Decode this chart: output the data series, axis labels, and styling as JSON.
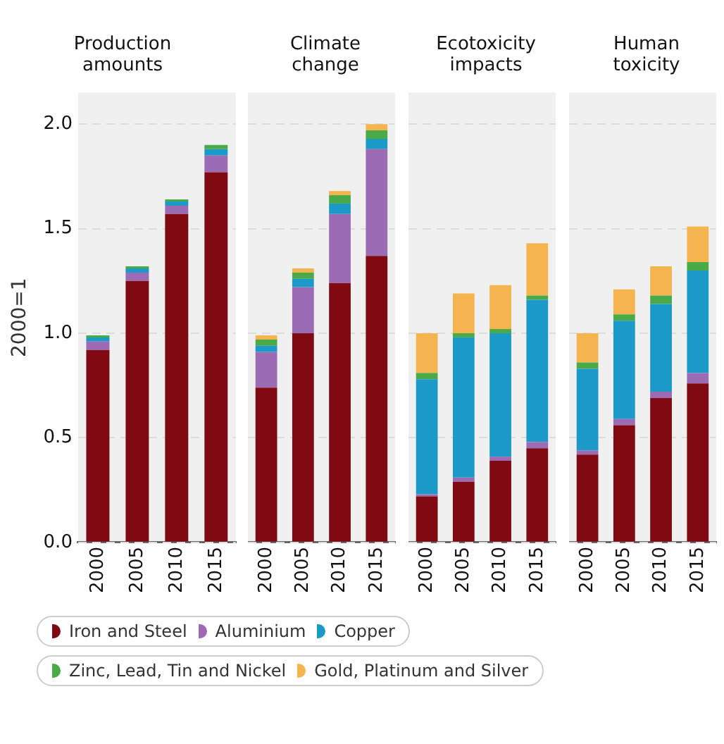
{
  "chart_data": [
    {
      "type": "bar",
      "title": "Production amounts",
      "ylabel": "2000=1",
      "categories": [
        "2000",
        "2005",
        "2010",
        "2015"
      ],
      "stacked": true,
      "ylim": [
        0,
        2.15
      ],
      "yticks": [
        {
          "value": 0,
          "label": "0.0"
        },
        0.5,
        {
          "value": 1,
          "label": "1.0"
        },
        1.5,
        {
          "value": 2,
          "label": "2.0"
        }
      ],
      "grid": "y",
      "legend": "bottom",
      "series": [
        {
          "name": "Iron and Steel",
          "color": "#7f0a12",
          "values": [
            0.92,
            1.25,
            1.57,
            1.77
          ]
        },
        {
          "name": "Aluminium",
          "color": "#9b6bb4",
          "values": [
            0.04,
            0.04,
            0.04,
            0.08
          ]
        },
        {
          "name": "Copper",
          "color": "#1b9ac9",
          "values": [
            0.02,
            0.02,
            0.02,
            0.03
          ]
        },
        {
          "name": "Zinc, Lead, Tin and Nickel",
          "color": "#4aaa47",
          "values": [
            0.01,
            0.01,
            0.01,
            0.02
          ]
        },
        {
          "name": "Gold, Platinum and Silver",
          "color": "#f6b44e",
          "values": [
            0,
            0,
            0,
            0
          ]
        }
      ]
    },
    {
      "type": "bar",
      "title": "Climate change",
      "categories": [
        "2000",
        "2005",
        "2010",
        "2015"
      ],
      "stacked": true,
      "ylim": [
        0,
        2.15
      ],
      "yticks": [
        0,
        0.5,
        1,
        1.5,
        2
      ],
      "grid": "y",
      "tick_labels": "x",
      "series": [
        {
          "color": "#7f0a12",
          "values": [
            0.74,
            1.0,
            1.24,
            1.37
          ]
        },
        {
          "color": "#9b6bb4",
          "values": [
            0.17,
            0.22,
            0.33,
            0.51
          ]
        },
        {
          "color": "#1b9ac9",
          "values": [
            0.03,
            0.04,
            0.05,
            0.05
          ]
        },
        {
          "color": "#4aaa47",
          "values": [
            0.03,
            0.03,
            0.04,
            0.04
          ]
        },
        {
          "color": "#f6b44e",
          "values": [
            0.02,
            0.02,
            0.02,
            0.03
          ]
        }
      ]
    },
    {
      "type": "bar",
      "title": "Ecotoxicity impacts",
      "categories": [
        "2000",
        "2005",
        "2010",
        "2015"
      ],
      "stacked": true,
      "ylim": [
        0,
        2.15
      ],
      "yticks": [
        0,
        0.5,
        1,
        1.5,
        2
      ],
      "grid": "y",
      "tick_labels": "x",
      "series": [
        {
          "color": "#7f0a12",
          "values": [
            0.22,
            0.29,
            0.39,
            0.45
          ]
        },
        {
          "color": "#9b6bb4",
          "values": [
            0.01,
            0.02,
            0.02,
            0.03
          ]
        },
        {
          "color": "#1b9ac9",
          "values": [
            0.55,
            0.67,
            0.59,
            0.68
          ]
        },
        {
          "color": "#4aaa47",
          "values": [
            0.03,
            0.02,
            0.02,
            0.02
          ]
        },
        {
          "color": "#f6b44e",
          "values": [
            0.19,
            0.19,
            0.21,
            0.25
          ]
        }
      ]
    },
    {
      "type": "bar",
      "title": "Human toxicity",
      "categories": [
        "2000",
        "2005",
        "2010",
        "2015"
      ],
      "stacked": true,
      "ylim": [
        0,
        2.15
      ],
      "yticks": [
        0,
        0.5,
        1,
        1.5,
        2
      ],
      "grid": "y",
      "tick_labels": "x",
      "series": [
        {
          "color": "#7f0a12",
          "values": [
            0.42,
            0.56,
            0.69,
            0.76
          ]
        },
        {
          "color": "#9b6bb4",
          "values": [
            0.02,
            0.03,
            0.03,
            0.05
          ]
        },
        {
          "color": "#1b9ac9",
          "values": [
            0.39,
            0.47,
            0.42,
            0.49
          ]
        },
        {
          "color": "#4aaa47",
          "values": [
            0.03,
            0.03,
            0.04,
            0.04
          ]
        },
        {
          "color": "#f6b44e",
          "values": [
            0.14,
            0.12,
            0.14,
            0.17
          ]
        }
      ]
    }
  ]
}
